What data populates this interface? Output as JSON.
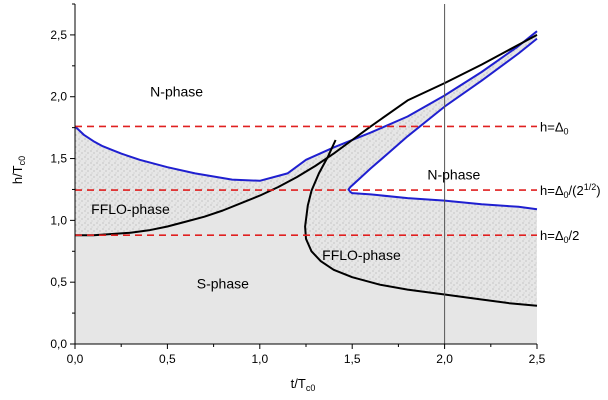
{
  "chart_data": {
    "type": "phase-diagram",
    "xlabel": "t/T",
    "xlabel_sub": "c0",
    "ylabel": "h/T",
    "ylabel_sub": "c0",
    "xlim": [
      0,
      2.5
    ],
    "ylim": [
      0,
      2.75
    ],
    "x_ticks": [
      0,
      0.5,
      1.0,
      1.5,
      2.0,
      2.5
    ],
    "x_tick_labels": [
      "0,0",
      "0,5",
      "1,0",
      "1,5",
      "2,0",
      "2,5"
    ],
    "y_ticks": [
      0,
      0.5,
      1.0,
      1.5,
      2.0,
      2.5
    ],
    "y_tick_labels": [
      "0,0",
      "0,5",
      "1,0",
      "1,5",
      "2,0",
      "2,5"
    ],
    "grid": false,
    "vertical_line_x": 2.0,
    "region_labels": [
      {
        "text": "N-phase",
        "x": 0.55,
        "y": 2.0
      },
      {
        "text": "N-phase",
        "x": 2.05,
        "y": 1.33
      },
      {
        "text": "FFLO-phase",
        "x": 0.3,
        "y": 1.05
      },
      {
        "text": "FFLO-phase",
        "x": 1.55,
        "y": 0.68
      },
      {
        "text": "S-phase",
        "x": 0.8,
        "y": 0.45
      }
    ],
    "horizontal_lines": [
      {
        "y": 1.76,
        "label": "h=Δ",
        "sub": "0",
        "tail": ""
      },
      {
        "y": 1.245,
        "label": "h=Δ",
        "sub": "0",
        "tail": "/(2",
        "sup": "1/2",
        "tail2": ")"
      },
      {
        "y": 0.88,
        "label": "h=Δ",
        "sub": "0",
        "tail": "/2"
      }
    ],
    "series": [
      {
        "color": "#1f1fd0",
        "x": [
          0.0,
          0.05,
          0.1,
          0.15,
          0.2,
          0.25,
          0.35,
          0.5,
          0.65,
          0.85,
          1.0,
          1.1,
          1.15,
          1.25,
          1.4,
          1.6,
          1.8,
          2.0,
          2.2,
          2.4,
          2.5
        ],
        "y": [
          1.76,
          1.69,
          1.64,
          1.6,
          1.57,
          1.54,
          1.49,
          1.43,
          1.38,
          1.33,
          1.32,
          1.36,
          1.38,
          1.49,
          1.59,
          1.71,
          1.84,
          2.01,
          2.2,
          2.41,
          2.53
        ]
      },
      {
        "color": "#1f1fd0",
        "x": [
          2.5,
          2.4,
          2.2,
          2.0,
          1.8,
          1.7,
          1.6,
          1.52,
          1.49,
          1.48,
          1.49,
          1.5,
          1.51,
          1.6,
          1.8,
          2.0,
          2.2,
          2.4,
          2.5
        ],
        "y": [
          2.47,
          2.35,
          2.13,
          1.92,
          1.68,
          1.55,
          1.42,
          1.31,
          1.27,
          1.25,
          1.23,
          1.22,
          1.22,
          1.21,
          1.18,
          1.16,
          1.13,
          1.11,
          1.09
        ]
      },
      {
        "color": "#000000",
        "x": [
          0.0,
          0.1,
          0.2,
          0.3,
          0.4,
          0.5,
          0.6,
          0.7,
          0.8,
          0.9,
          1.0,
          1.1,
          1.2,
          1.3,
          1.4,
          1.5,
          1.6,
          1.8,
          2.0,
          2.2,
          2.5
        ],
        "y": [
          0.88,
          0.88,
          0.89,
          0.9,
          0.92,
          0.95,
          0.99,
          1.03,
          1.08,
          1.14,
          1.2,
          1.27,
          1.35,
          1.44,
          1.54,
          1.65,
          1.76,
          1.97,
          2.11,
          2.26,
          2.5
        ]
      },
      {
        "color": "#000000",
        "x": [
          1.41,
          1.37,
          1.32,
          1.28,
          1.26,
          1.245,
          1.25,
          1.28,
          1.33,
          1.4,
          1.5,
          1.65,
          1.8,
          2.0,
          2.2,
          2.35,
          2.5
        ],
        "y": [
          1.65,
          1.52,
          1.38,
          1.24,
          1.12,
          0.95,
          0.85,
          0.75,
          0.67,
          0.6,
          0.54,
          0.48,
          0.44,
          0.4,
          0.36,
          0.33,
          0.31
        ]
      }
    ]
  }
}
